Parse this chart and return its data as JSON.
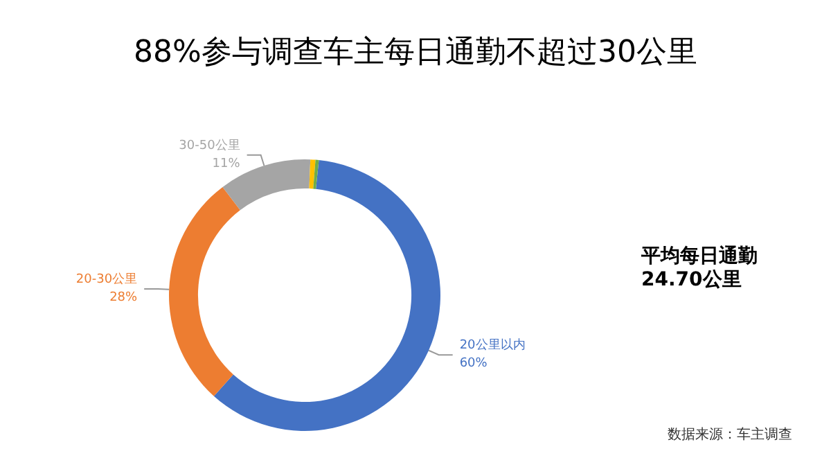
{
  "chart_data": {
    "type": "donut",
    "title": "88%参与调查车主每日通勤不超过30公里",
    "categories": [
      "20公里以内",
      "20-30公里",
      "30-50公里",
      null,
      null
    ],
    "values": [
      60,
      28,
      11,
      0.6,
      0.4
    ],
    "colors": [
      "#4472c4",
      "#ed7d31",
      "#a5a5a5",
      "#ffc000",
      "#70ad47"
    ],
    "value_labels": [
      "60%",
      "28%",
      "11%",
      null,
      null
    ],
    "legend": false,
    "annotations": [
      "平均每日通勤",
      "24.70公里",
      "数据来源：车主调查"
    ]
  }
}
